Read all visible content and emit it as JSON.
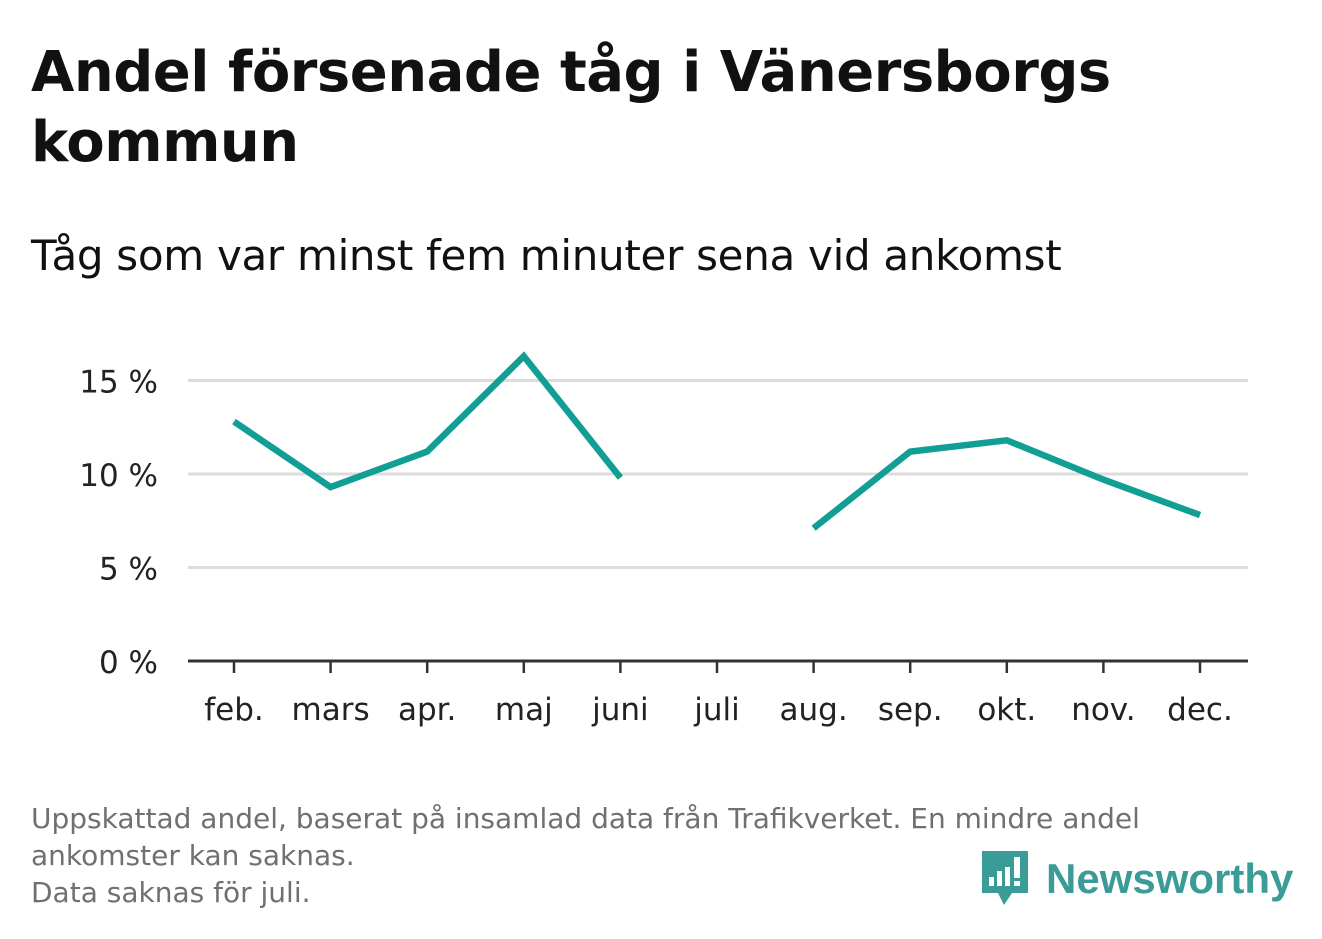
{
  "header": {
    "title": "Andel försenade tåg i Vänersborgs kommun",
    "subtitle": "Tåg som var minst fem minuter sena vid ankomst"
  },
  "chart_data": {
    "type": "line",
    "categories": [
      "feb.",
      "mars",
      "apr.",
      "maj",
      "juni",
      "juli",
      "aug.",
      "sep.",
      "okt.",
      "nov.",
      "dec."
    ],
    "series": [
      {
        "values": [
          12.8,
          9.3,
          11.2,
          16.3,
          9.8,
          null,
          7.1,
          11.2,
          11.8,
          9.7,
          7.8
        ]
      }
    ],
    "yticks": [
      0,
      5,
      10,
      15
    ],
    "ytick_labels": [
      "0 %",
      "5 %",
      "10 %",
      "15 %"
    ],
    "ylim": [
      0,
      17
    ],
    "grid": true,
    "line_color": "#119e94",
    "grid_color": "#dcdcdc",
    "axis_color": "#333333"
  },
  "footer": {
    "note_line1": "Uppskattad andel, baserat på insamlad data från Trafikverket. En mindre andel ankomster kan saknas.",
    "note_line2": "Data saknas för juli."
  },
  "logo": {
    "icon": "newsworthy-logo-icon",
    "text": "Newsworthy",
    "color": "#3a9b97"
  }
}
